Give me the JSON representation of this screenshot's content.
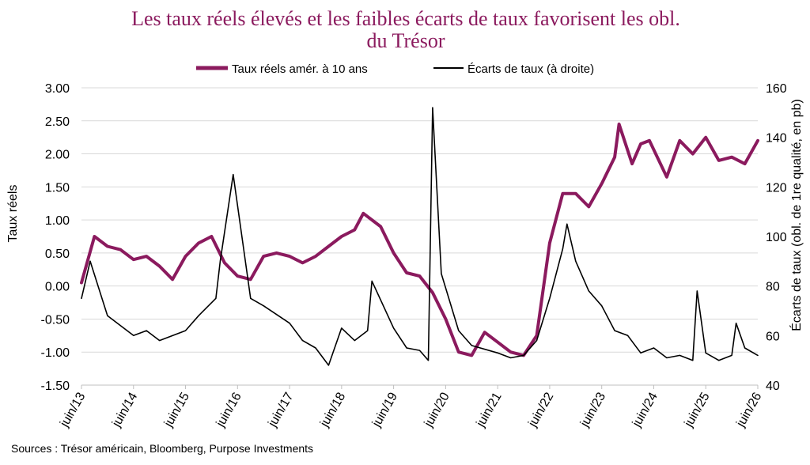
{
  "chart_data": {
    "type": "line",
    "title_line1": "Les taux réels élevés et les faibles écarts de taux favorisent les obl.",
    "title_line2": "du Trésor",
    "legend": [
      "Taux réels amér. à 10 ans",
      "Écarts de taux (à droite)"
    ],
    "ylabel_left": "Taux réels",
    "ylabel_right": "Écarts de taux (obl. de 1re qualité, en pb)",
    "ylim_left": [
      -1.5,
      3.0
    ],
    "ylim_right": [
      40,
      160
    ],
    "yticks_left": [
      "3.00",
      "2.50",
      "2.00",
      "1.50",
      "1.00",
      "0.50",
      "0.00",
      "-0.50",
      "-1.00",
      "-1.50"
    ],
    "yticks_right": [
      "160",
      "140",
      "120",
      "100",
      "80",
      "60",
      "40"
    ],
    "xticks": [
      "juin/13",
      "juin/14",
      "juin/15",
      "juin/16",
      "juin/17",
      "juin/18",
      "juin/19",
      "juin/20",
      "juin/21",
      "juin/22",
      "juin/23",
      "juin/24",
      "juin/25",
      "juin/26"
    ],
    "x_range": [
      "2013-06",
      "2026-06"
    ],
    "grid": "horizontal",
    "legend_position": "top",
    "colors": {
      "real_rates": "#8B1A5E",
      "spreads": "#000000",
      "title": "#8B1A5E"
    },
    "series": [
      {
        "name": "Taux réels amér. à 10 ans",
        "axis": "left",
        "x": [
          "2013-06",
          "2013-09",
          "2013-12",
          "2014-03",
          "2014-06",
          "2014-09",
          "2014-12",
          "2015-03",
          "2015-06",
          "2015-09",
          "2015-12",
          "2016-03",
          "2016-06",
          "2016-09",
          "2016-12",
          "2017-03",
          "2017-06",
          "2017-09",
          "2017-12",
          "2018-03",
          "2018-06",
          "2018-09",
          "2018-11",
          "2019-03",
          "2019-06",
          "2019-09",
          "2019-12",
          "2020-03",
          "2020-06",
          "2020-09",
          "2020-12",
          "2021-03",
          "2021-06",
          "2021-09",
          "2021-12",
          "2022-03",
          "2022-06",
          "2022-09",
          "2022-12",
          "2023-03",
          "2023-06",
          "2023-09",
          "2023-10",
          "2024-01",
          "2024-03",
          "2024-05",
          "2024-09",
          "2024-12",
          "2025-03",
          "2025-06",
          "2025-09",
          "2025-12",
          "2026-03",
          "2026-06"
        ],
        "values": [
          0.05,
          0.75,
          0.6,
          0.55,
          0.4,
          0.45,
          0.3,
          0.1,
          0.45,
          0.65,
          0.75,
          0.35,
          0.15,
          0.1,
          0.45,
          0.5,
          0.45,
          0.35,
          0.45,
          0.6,
          0.75,
          0.85,
          1.1,
          0.9,
          0.5,
          0.2,
          0.15,
          -0.1,
          -0.5,
          -1.0,
          -1.05,
          -0.7,
          -0.85,
          -1.0,
          -1.05,
          -0.75,
          0.65,
          1.4,
          1.4,
          1.2,
          1.55,
          1.95,
          2.45,
          1.85,
          2.15,
          2.2,
          1.65,
          2.2,
          2.0,
          2.25,
          1.9,
          1.95,
          1.85,
          2.2
        ]
      },
      {
        "name": "Écarts de taux (à droite)",
        "axis": "right",
        "x": [
          "2013-06",
          "2013-08",
          "2013-12",
          "2014-06",
          "2014-09",
          "2014-12",
          "2015-06",
          "2015-09",
          "2016-01",
          "2016-02",
          "2016-05",
          "2016-09",
          "2016-12",
          "2017-06",
          "2017-09",
          "2017-12",
          "2018-03",
          "2018-06",
          "2018-09",
          "2018-12",
          "2019-01",
          "2019-06",
          "2019-09",
          "2019-12",
          "2020-02",
          "2020-03",
          "2020-05",
          "2020-09",
          "2020-12",
          "2021-06",
          "2021-09",
          "2021-12",
          "2022-03",
          "2022-06",
          "2022-09",
          "2022-10",
          "2022-12",
          "2023-03",
          "2023-06",
          "2023-09",
          "2023-12",
          "2024-03",
          "2024-06",
          "2024-09",
          "2024-12",
          "2025-03",
          "2025-04",
          "2025-06",
          "2025-09",
          "2025-12",
          "2026-01",
          "2026-03",
          "2026-06"
        ],
        "values": [
          75,
          90,
          68,
          60,
          62,
          58,
          62,
          68,
          75,
          90,
          125,
          75,
          72,
          65,
          58,
          55,
          48,
          63,
          58,
          62,
          82,
          63,
          55,
          54,
          50,
          152,
          85,
          62,
          56,
          53,
          51,
          52,
          58,
          75,
          95,
          105,
          90,
          78,
          72,
          62,
          60,
          53,
          55,
          51,
          52,
          50,
          78,
          53,
          50,
          52,
          65,
          55,
          52
        ]
      }
    ]
  },
  "source": "Sources : Trésor américain, Bloomberg, Purpose Investments"
}
